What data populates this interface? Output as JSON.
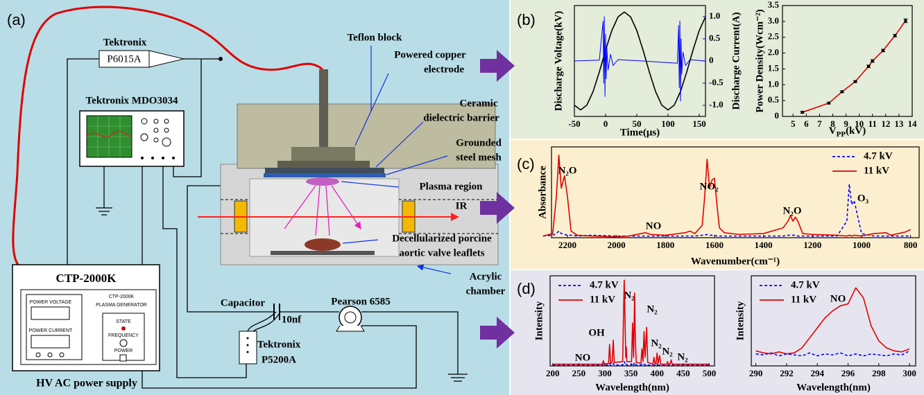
{
  "schematic": {
    "panel_label": "(a)",
    "probe_maker": "Tektronix",
    "probe_model": "P6015A",
    "oscilloscope": "Tektronix MDO3034",
    "supply": {
      "model": "CTP-2000K",
      "power_voltage": "POWER VOLTAGE",
      "panel_model": "CTP-2000K",
      "panel_name": "PLASMA GENERATOR",
      "power_current": "POWER CURRENT",
      "state": "STATE",
      "frequency": "FREQUENCY",
      "power": "POWER",
      "caption": "HV AC power supply"
    },
    "capacitor": "Capacitor",
    "capacitance": "10nf",
    "current_probe": "Pearson 6585",
    "hv_probe": [
      "Tektronix",
      "P5200A"
    ],
    "reactor_labels": {
      "teflon_block": "Teflon block",
      "electrode": [
        "Powered copper",
        "electrode"
      ],
      "barrier": [
        "Ceramic",
        "dielectric barrier"
      ],
      "mesh": [
        "Grounded",
        "steel mesh"
      ],
      "plasma": "Plasma region",
      "ir": "IR",
      "sample": [
        "Decellularized porcine",
        "aortic valve leaflets"
      ],
      "chamber": [
        "Acrylic",
        "chamber"
      ]
    }
  },
  "panel_labels": [
    "(b)",
    "(c)",
    "(d)"
  ],
  "chart_data": [
    {
      "type": "line",
      "xlabel": "Time(μs)",
      "ylabel": "Discharge Voltage(kV)",
      "y2label": "Discharge Current(A)",
      "x": [
        -50,
        -40,
        -30,
        -20,
        -10,
        0,
        10,
        20,
        30,
        40,
        50,
        60,
        70,
        80,
        90,
        100,
        110,
        120,
        130,
        140,
        150,
        160
      ],
      "xlim": [
        -50,
        160
      ],
      "xticks": [
        -50,
        0,
        50,
        100,
        150
      ],
      "ylim": [
        -6,
        6
      ],
      "y2lim": [
        -1.25,
        1.25
      ],
      "y2ticks": [
        {
          "value": 1,
          "label": "1.0"
        },
        0.5,
        0,
        -0.5,
        {
          "value": -1,
          "label": "-1.0"
        }
      ],
      "series": [
        {
          "color": "#000000",
          "values": [
            -4.78,
            -5.3,
            -4.78,
            -3.3,
            -1.18,
            1.18,
            3.3,
            4.78,
            5.3,
            4.78,
            3.3,
            1.18,
            -1.18,
            -3.3,
            -4.78,
            -5.3,
            -4.78,
            -3.3,
            -1.18,
            1.18,
            3.3,
            4.78
          ]
        },
        {
          "color": "#0000ff",
          "axis": "y2",
          "x": [
            -50,
            -10,
            -4,
            -3,
            -2,
            -1,
            0,
            1,
            2,
            4,
            8,
            12,
            20,
            60,
            115,
            117,
            118,
            119,
            120,
            121,
            122,
            124,
            128,
            135,
            160
          ],
          "values": [
            0,
            0.02,
            0.9,
            -0.5,
            1.0,
            -0.8,
            0.6,
            -0.4,
            0.3,
            -0.2,
            0.15,
            -0.1,
            0.03,
            0,
            -0.05,
            0.8,
            -0.6,
            0.9,
            -0.9,
            0.5,
            -0.3,
            0.2,
            -0.1,
            0.03,
            0
          ]
        }
      ]
    },
    {
      "type": "scatter",
      "xlabel": [
        "V",
        "PP",
        "(kV)"
      ],
      "ylabel": "Power Density(Wcm⁻²)",
      "x": [
        5.7,
        7.7,
        8.7,
        9.7,
        10.7,
        11,
        11.8,
        12.7,
        13.5
      ],
      "xlim": [
        4.2,
        14
      ],
      "xticks": [
        5,
        6,
        7,
        8,
        9,
        10,
        11,
        12,
        13,
        14
      ],
      "ylim": [
        0,
        3.5
      ],
      "yticks": [
        0,
        0.5,
        {
          "value": 1,
          "label": "1.0"
        },
        1.5,
        {
          "value": 2,
          "label": "2.0"
        },
        2.5,
        {
          "value": 3,
          "label": "3.0"
        },
        3.5
      ],
      "series": [
        {
          "line_color": "#e00000",
          "marker_color": "#000000",
          "values": [
            0.13,
            0.42,
            0.78,
            1.1,
            1.58,
            1.75,
            2.08,
            2.55,
            3.02
          ],
          "error": [
            0.03,
            0.03,
            0.03,
            0.03,
            0.04,
            0.04,
            0.04,
            0.04,
            0.06
          ]
        }
      ]
    },
    {
      "type": "line",
      "xlabel": "Wavenumber(cm⁻¹)",
      "ylabel": "Absorbance",
      "legend": "upper right",
      "x": [
        2300,
        2260,
        2245,
        2235,
        2225,
        2212,
        2200,
        2185,
        2160,
        2100,
        2000,
        1950,
        1900,
        1880,
        1860,
        1800,
        1720,
        1700,
        1680,
        1650,
        1640,
        1630,
        1620,
        1610,
        1600,
        1590,
        1580,
        1560,
        1500,
        1400,
        1320,
        1300,
        1290,
        1280,
        1270,
        1260,
        1240,
        1200,
        1100,
        1060,
        1050,
        1040,
        1030,
        1000,
        950,
        900,
        880,
        850,
        820,
        800
      ],
      "xlim": [
        2265,
        765
      ],
      "xticks": [
        2200,
        2000,
        1800,
        1600,
        1400,
        1200,
        1000,
        800
      ],
      "ylim": [
        0,
        1.1
      ],
      "annotations": [
        "N₂O",
        "NO",
        "NO₂",
        "N₂O",
        "O₃"
      ],
      "series": [
        {
          "name": "4.7 kV",
          "color": "#0000ff",
          "dash": true,
          "values": [
            0.02,
            0.03,
            0.05,
            0.08,
            0.05,
            0.04,
            0.03,
            0.03,
            0.02,
            0.03,
            0.02,
            0.02,
            0.02,
            0.02,
            0.02,
            0.02,
            0.02,
            0.02,
            0.02,
            0.03,
            0.03,
            0.04,
            0.03,
            0.03,
            0.03,
            0.02,
            0.02,
            0.02,
            0.02,
            0.02,
            0.02,
            0.03,
            0.03,
            0.03,
            0.03,
            0.02,
            0.02,
            0.02,
            0.02,
            0.2,
            0.65,
            0.4,
            0.45,
            0.05,
            0.02,
            0.02,
            0.02,
            0.02,
            0.02,
            0.02
          ]
        },
        {
          "name": "11 kV",
          "color": "#e00000",
          "values": [
            0.02,
            0.05,
            0.5,
            1.0,
            0.6,
            0.75,
            0.5,
            0.08,
            0.03,
            0.02,
            0.01,
            0.02,
            0.05,
            0.06,
            0.04,
            0.03,
            0.06,
            0.08,
            0.05,
            0.15,
            0.5,
            0.95,
            0.6,
            0.7,
            0.72,
            0.4,
            0.12,
            0.06,
            0.04,
            0.05,
            0.12,
            0.2,
            0.27,
            0.2,
            0.25,
            0.2,
            0.05,
            0.04,
            0.03,
            0.02,
            0.03,
            0.02,
            0.03,
            0.02,
            0.05,
            0.06,
            0.03,
            0.05,
            0.07,
            0.1
          ]
        }
      ]
    },
    {
      "type": "line",
      "xlabel": "Wavelength(nm)",
      "ylabel": "Intensity",
      "legend": "upper left",
      "x": [
        200,
        290,
        295,
        297,
        299,
        307,
        309,
        311,
        314,
        316,
        318,
        334,
        337,
        340,
        341,
        342,
        351,
        353,
        355,
        357,
        358,
        360,
        369,
        371,
        373,
        375,
        377,
        380,
        382,
        392,
        394,
        396,
        398,
        400,
        402,
        405,
        407,
        418,
        420,
        422,
        425,
        427,
        429,
        440,
        500
      ],
      "xlim": [
        195,
        510
      ],
      "xticks": [
        200,
        250,
        300,
        350,
        400,
        450,
        500
      ],
      "ylim": [
        0,
        1.05
      ],
      "annotations": [
        "NO",
        "OH",
        "N₂",
        "N₂",
        "N₂",
        "N₂",
        "N₂"
      ],
      "series": [
        {
          "name": "4.7 kV",
          "color": "#0000ff",
          "dash": true,
          "values": [
            0.01,
            0.01,
            0.01,
            0.02,
            0.01,
            0.01,
            0.03,
            0.01,
            0.01,
            0.03,
            0.01,
            0.01,
            0.05,
            0.01,
            0.02,
            0.01,
            0.01,
            0.03,
            0.01,
            0.04,
            0.02,
            0.01,
            0.01,
            0.02,
            0.01,
            0.02,
            0.01,
            0.02,
            0.01,
            0.01,
            0.01,
            0.01,
            0.01,
            0.01,
            0.01,
            0.01,
            0.01,
            0.01,
            0.01,
            0.01,
            0.01,
            0.01,
            0.01,
            0.01,
            0.01
          ]
        },
        {
          "name": "11 kV",
          "color": "#e00000",
          "values": [
            0.02,
            0.02,
            0.02,
            0.06,
            0.02,
            0.03,
            0.25,
            0.03,
            0.05,
            0.3,
            0.04,
            0.05,
            1.0,
            0.1,
            0.22,
            0.05,
            0.05,
            0.5,
            0.1,
            0.85,
            0.4,
            0.04,
            0.03,
            0.2,
            0.05,
            0.4,
            0.1,
            0.45,
            0.04,
            0.02,
            0.1,
            0.02,
            0.03,
            0.15,
            0.03,
            0.12,
            0.02,
            0.02,
            0.05,
            0.02,
            0.02,
            0.07,
            0.02,
            0.02,
            0.02
          ]
        }
      ]
    },
    {
      "type": "line",
      "xlabel": "Wavelength(nm)",
      "ylabel": "Intensity",
      "legend": "upper left",
      "x": [
        290,
        290.5,
        291,
        291.5,
        292,
        292.5,
        293,
        293.5,
        294,
        294.5,
        295,
        295.5,
        296,
        296.5,
        297,
        297.5,
        298,
        298.5,
        299,
        299.5,
        300
      ],
      "xlim": [
        289.7,
        300.4
      ],
      "xticks": [
        290,
        292,
        294,
        296,
        298,
        300
      ],
      "ylim": [
        0,
        0.9
      ],
      "annotations": [
        "NO"
      ],
      "series": [
        {
          "name": "4.7 kV",
          "color": "#0000ff",
          "dash": true,
          "values": [
            0.12,
            0.11,
            0.13,
            0.1,
            0.12,
            0.11,
            0.1,
            0.13,
            0.1,
            0.12,
            0.11,
            0.13,
            0.1,
            0.12,
            0.1,
            0.12,
            0.11,
            0.1,
            0.12,
            0.11,
            0.15
          ]
        },
        {
          "name": "11 kV",
          "color": "#e00000",
          "values": [
            0.15,
            0.13,
            0.12,
            0.14,
            0.12,
            0.13,
            0.18,
            0.28,
            0.38,
            0.48,
            0.55,
            0.6,
            0.62,
            0.78,
            0.68,
            0.4,
            0.25,
            0.18,
            0.15,
            0.14,
            0.17
          ]
        }
      ]
    }
  ]
}
